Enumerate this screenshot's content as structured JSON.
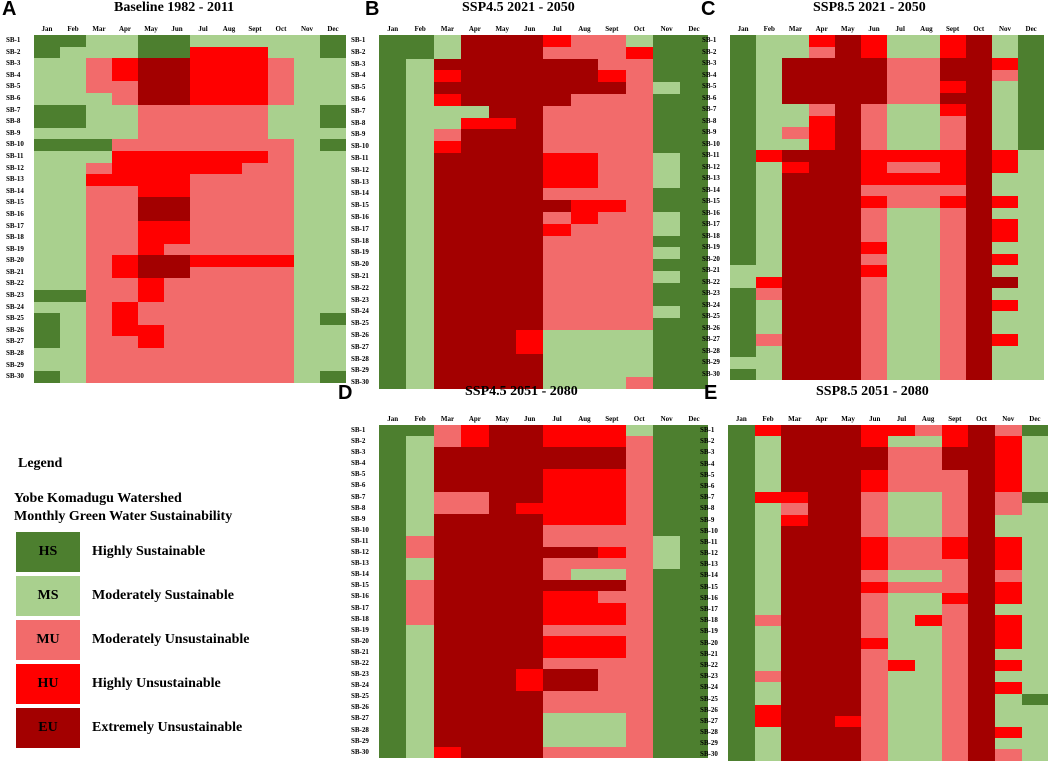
{
  "legend": {
    "title": "Legend",
    "subtitle_line1": "Yobe Komadugu Watershed",
    "subtitle_line2": "Monthly Green Water Sustainability",
    "items": [
      {
        "code": "HS",
        "label": "Highly Sustainable",
        "color": "#4d7f2f"
      },
      {
        "code": "MS",
        "label": "Moderately Sustainable",
        "color": "#a9d08e"
      },
      {
        "code": "MU",
        "label": "Moderately Unsustainable",
        "color": "#f26b6b"
      },
      {
        "code": "HU",
        "label": "Highly Unsustainable",
        "color": "#ff0000"
      },
      {
        "code": "EU",
        "label": "Extremely Unsustainable",
        "color": "#a30000"
      }
    ]
  },
  "chart_data": [
    {
      "type": "heatmap",
      "panel": "A",
      "title": "Baseline 1982 - 2011",
      "months": [
        "Jan",
        "Feb",
        "Mar",
        "Apr",
        "May",
        "Jun",
        "Jul",
        "Aug",
        "Sept",
        "Oct",
        "Nov",
        "Dec"
      ],
      "rows": [
        "SB-1",
        "SB-2",
        "SB-3",
        "SB-4",
        "SB-5",
        "SB-6",
        "SB-7",
        "SB-8",
        "SB-9",
        "SB-10",
        "SB-11",
        "SB-12",
        "SB-13",
        "SB-14",
        "SB-15",
        "SB-16",
        "SB-17",
        "SB-18",
        "SB-19",
        "SB-20",
        "SB-21",
        "SB-22",
        "SB-23",
        "SB-24",
        "SB-25",
        "SB-26",
        "SB-27",
        "SB-28",
        "SB-29",
        "SB-30"
      ],
      "values": [
        "HHSSHHSSSSSH",
        "HSSSHHUUUSSH",
        "SSMUEEUUUMSS",
        "SSMUEEUUUMSS",
        "SSMMEEUUUMSS",
        "SSSMEEUUUMSS",
        "HHSSMMMMMSSH",
        "HHSSMMMMMSSH",
        "SSSSMMMMMSSS",
        "HHHMMMMMMMSH",
        "SSSUUUUUUMSS",
        "SSMUUUUUMMSS",
        "SSUUUUMMMMSS",
        "SSMMUUMMMMSS",
        "SSMMEEMMMMSS",
        "SSMMEEMMMMSS",
        "SSMMUUMMMMSS",
        "SSMMUUMMMMSS",
        "SSMMUMMMMMSS",
        "SSMUEEUUUUSS",
        "SSMUEEMMMMSS",
        "SSMMUMMMMMSS",
        "HHMMUMMMMMSS",
        "SSMUMMMMMMSS",
        "HSMUMMMMMMSH",
        "HSMUUMMMMMSS",
        "HSMMUMMMMMSS",
        "SSMMMMMMMMSS",
        "SSMMMMMMMMSS",
        "HSMMMMMMMMSH"
      ]
    },
    {
      "type": "heatmap",
      "panel": "B",
      "title": "SSP4.5 2021 - 2050",
      "months": [
        "Jan",
        "Feb",
        "Mar",
        "Apr",
        "May",
        "Jun",
        "Jul",
        "Aug",
        "Sept",
        "Oct",
        "Nov",
        "Dec"
      ],
      "rows": [
        "SB-1",
        "SB-2",
        "SB-3",
        "SB-4",
        "SB-5",
        "SB-6",
        "SB-7",
        "SB-8",
        "SB-9",
        "SB-10",
        "SB-11",
        "SB-12",
        "SB-13",
        "SB-14",
        "SB-15",
        "SB-16",
        "SB-17",
        "SB-18",
        "SB-19",
        "SB-20",
        "SB-21",
        "SB-22",
        "SB-23",
        "SB-24",
        "SB-25",
        "SB-26",
        "SB-27",
        "SB-28",
        "SB-29",
        "SB-30"
      ],
      "values": [
        "HHSEEEUMMSHH",
        "HHSEEEMMMUHH",
        "HSEEEEEEMMHH",
        "HSUEEEEEUMHH",
        "HSEEEEEEEMSH",
        "HSUEEEEMMMHH",
        "HSSSEEMMMMHH",
        "HSSUUEMMMMHH",
        "HSMEEEMMMMHH",
        "HSUEEEMMMMHH",
        "HSEEEEUUMMSH",
        "HSEEEEUUMMSH",
        "HSEEEEUUMMSH",
        "HSEEEEMMMMHH",
        "HSEEEEEUUMHH",
        "HSEEEEMUMMSH",
        "HSEEEEUMMMSH",
        "HSEEEEMMMMHH",
        "HSEEEEMMMMSH",
        "HSEEEEMMMMHH",
        "HSEEEEMMMMSH",
        "HSEEEEMMMMHH",
        "HSEEEEMMMMHH",
        "HSEEEEMMMMSH",
        "HSEEEEMMMMHH",
        "HSEEEUSSSSHH",
        "HSEEEUSSSSHH",
        "HSEEEESSSSHH",
        "HSEEEESSSSHH",
        "HSEEEESSSMHH"
      ]
    },
    {
      "type": "heatmap",
      "panel": "C",
      "title": "SSP8.5 2021 - 2050",
      "months": [
        "Jan",
        "Feb",
        "Mar",
        "Apr",
        "May",
        "Jun",
        "Jul",
        "Aug",
        "Sept",
        "Oct",
        "Nov",
        "Dec"
      ],
      "rows": [
        "SB-1",
        "SB-2",
        "SB-3",
        "SB-4",
        "SB-5",
        "SB-6",
        "SB-7",
        "SB-8",
        "SB-9",
        "SB-10",
        "SB-11",
        "SB-12",
        "SB-13",
        "SB-14",
        "SB-15",
        "SB-16",
        "SB-17",
        "SB-18",
        "SB-19",
        "SB-20",
        "SB-21",
        "SB-22",
        "SB-23",
        "SB-24",
        "SB-25",
        "SB-26",
        "SB-27",
        "SB-28",
        "SB-29",
        "SB-30"
      ],
      "values": [
        "HSSUEUSSUESH",
        "HSSMEUSSUESH",
        "HSEEEEMMEEUH",
        "HSEEEEMMEEMH",
        "HSEEEEMMUESH",
        "HSEEEEMMEESH",
        "HSSMEMSSUESH",
        "HSSUEMSSMESH",
        "HSMUEMSSMESH",
        "HSSUEMSSMESH",
        "HUEEEUUUUEUS",
        "HSUEEUMMUEUS",
        "HSEEEUUUUESS",
        "HSEEEMMMMESS",
        "HSEEEUMMUEUS",
        "HSEEEMSSMESS",
        "HSEEEMSSMEUS",
        "HSEEEMSSMEUS",
        "HSEEEUSSMESS",
        "HSEEEMSSMEUS",
        "SSEEEUSSMESS",
        "SUEEEMSSMEES",
        "HMEEEMSSMESS",
        "HSEEEMSSMEUS",
        "HSEEEMSSMESS",
        "HSEEEMSSMESS",
        "HMEEEMSSMEUS",
        "HSEEEMSSMESS",
        "SSEEEMSSMESS",
        "HSEEEMSSMESS"
      ]
    },
    {
      "type": "heatmap",
      "panel": "D",
      "title": "SSP4.5 2051 - 2080",
      "months": [
        "Jan",
        "Feb",
        "Mar",
        "Apr",
        "May",
        "Jun",
        "Jul",
        "Aug",
        "Sept",
        "Oct",
        "Nov",
        "Dec"
      ],
      "rows": [
        "SB-1",
        "SB-2",
        "SB-3",
        "SB-4",
        "SB-5",
        "SB-6",
        "SB-7",
        "SB-8",
        "SB-9",
        "SB-10",
        "SB-11",
        "SB-12",
        "SB-13",
        "SB-14",
        "SB-15",
        "SB-16",
        "SB-17",
        "SB-18",
        "SB-19",
        "SB-20",
        "SB-21",
        "SB-22",
        "SB-23",
        "SB-24",
        "SB-25",
        "SB-26",
        "SB-27",
        "SB-28",
        "SB-29",
        "SB-30"
      ],
      "values": [
        "HHMUEEUUUSHH",
        "HSMUEEUUUMHH",
        "HSEEEEEEEMHH",
        "HSEEEEEEEMHH",
        "HSEEEEUUUMHH",
        "HSEEEEUUUMHH",
        "HSMMEEUUUMHH",
        "HSMMEUUUUMHH",
        "HSEEEEUUUMHH",
        "HSEEEEMMMMHH",
        "HMEEEEMMMMSH",
        "HMEEEEEEUMSH",
        "HSEEEEMMMMSH",
        "HSEEEEMSSMHH",
        "HMEEEEEEEMHH",
        "HMEEEEUUMMHH",
        "HMEEEEUUUMHH",
        "HMEEEEUUUMHH",
        "HSEEEEMMMMHH",
        "HSEEEEUUUMHH",
        "HSEEEEUUUMHH",
        "HSEEEEMMMMHH",
        "HSEEEUEEMMHH",
        "HSEEEUEEMMHH",
        "HSEEEEMMMMHH",
        "HSEEEEMMMMHH",
        "HSEEEESSSMHH",
        "HSEEEESSSMHH",
        "HSEEEESSSMHH",
        "HSUEEEMMMMHH"
      ]
    },
    {
      "type": "heatmap",
      "panel": "E",
      "title": "SSP8.5 2051 - 2080",
      "months": [
        "Jan",
        "Feb",
        "Mar",
        "Apr",
        "May",
        "Jun",
        "Jul",
        "Aug",
        "Sept",
        "Oct",
        "Nov",
        "Dec"
      ],
      "rows": [
        "SB-1",
        "SB-2",
        "SB-3",
        "SB-4",
        "SB-5",
        "SB-6",
        "SB-7",
        "SB-8",
        "SB-9",
        "SB-10",
        "SB-11",
        "SB-12",
        "SB-13",
        "SB-14",
        "SB-15",
        "SB-16",
        "SB-17",
        "SB-18",
        "SB-19",
        "SB-20",
        "SB-21",
        "SB-22",
        "SB-23",
        "SB-24",
        "SB-25",
        "SB-26",
        "SB-27",
        "SB-28",
        "SB-29",
        "SB-30"
      ],
      "values": [
        "HUEEEUUMUEMH",
        "HSEEEUSSUEUS",
        "HSEEEEMMEEUS",
        "HSEEEEMMEEUS",
        "HSEEEUMMMEUS",
        "HSEEEUMMMEUS",
        "HUUEEMSSMEMH",
        "HSMEEMSSMEMS",
        "HSUEEMSSMESS",
        "HSEEEMSSMESS",
        "HSEEEUMMUEUS",
        "HSEEEUMMUEUS",
        "HSEEEUMMMEUS",
        "HSEEEMSSMEMS",
        "HSEEEUMMMEUS",
        "HSEEEMSSUEUS",
        "HSEEEMSSMESS",
        "HMEEEMSUMEUS",
        "HSEEEMSSMEUS",
        "HSEEEUSSMEUS",
        "HSEEEMSSMESS",
        "HSEEEMUSMEUS",
        "HMEEEMSSMESS",
        "HSEEEMSSMEUS",
        "HSEEEMSSMESH",
        "HUEEEMSSMESS",
        "HUEEUMSSMESS",
        "HSEEEMSSMEUS",
        "HSEEEMSSMESS",
        "HSEEEMSSMEMS"
      ]
    }
  ],
  "code_map": {
    "H": "HS",
    "S": "MS",
    "M": "MU",
    "U": "HU",
    "E": "EU"
  }
}
